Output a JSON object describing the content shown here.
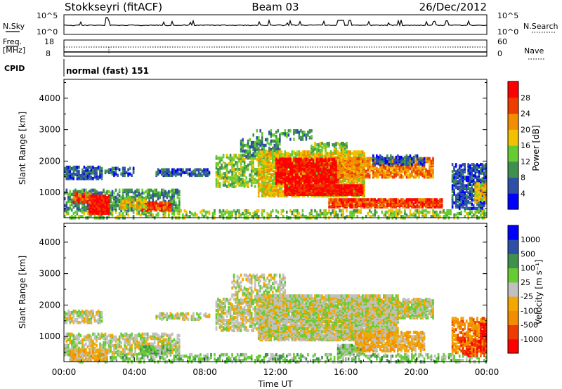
{
  "header": {
    "station": "Stokkseyri (fitACF)",
    "beam": "Beam 03",
    "date": "26/Dec/2012"
  },
  "status_panels": {
    "nsky_label": "N.Sky",
    "nsky_ticks": [
      "10^5",
      "10^0"
    ],
    "nsearch_label": "N.Search",
    "nsearch_ticks": [
      "10^5",
      "10^0"
    ],
    "freq_label_1": "Freq.",
    "freq_label_2": "[MHz]",
    "freq_ticks": [
      "18",
      "8"
    ],
    "nave_label": "Nave",
    "nave_ticks": [
      "60",
      "0"
    ],
    "cpid_label": "CPID",
    "cpid_text": "normal (fast) 151"
  },
  "chart_data": [
    {
      "type": "heatmap",
      "name": "Power",
      "ylabel": "Slant Range [km]",
      "ylim": [
        200,
        4600
      ],
      "yticks": [
        1000,
        2000,
        3000,
        4000
      ],
      "xlim": [
        0,
        24
      ],
      "colorbar": {
        "label": "Power [dB]",
        "ticks": [
          "28",
          "24",
          "20",
          "16",
          "12",
          "8",
          "4"
        ],
        "colors": [
          "#0000ff",
          "#2e4fa6",
          "#3f8f4f",
          "#66cc33",
          "#f2c100",
          "#f28c00",
          "#ee3c00",
          "#ff0000"
        ]
      },
      "regions": [
        {
          "t0": 0.0,
          "t1": 24.0,
          "r0": 200,
          "r1": 450,
          "level": 3,
          "density": 0.35
        },
        {
          "t0": 0.0,
          "t1": 2.2,
          "r0": 1450,
          "r1": 1850,
          "level": 1,
          "density": 0.7
        },
        {
          "t0": 2.3,
          "t1": 4.0,
          "r0": 1550,
          "r1": 1800,
          "level": 1,
          "density": 0.45
        },
        {
          "t0": 5.2,
          "t1": 6.7,
          "r0": 1550,
          "r1": 1750,
          "level": 1,
          "density": 0.8
        },
        {
          "t0": 6.8,
          "t1": 8.2,
          "r0": 1550,
          "r1": 1750,
          "level": 1,
          "density": 0.6
        },
        {
          "t0": 0.0,
          "t1": 6.5,
          "r0": 450,
          "r1": 1100,
          "level": 2,
          "density": 0.55
        },
        {
          "t0": 1.4,
          "t1": 2.6,
          "r0": 350,
          "r1": 900,
          "level": 7,
          "density": 0.9
        },
        {
          "t0": 0.5,
          "t1": 1.5,
          "r0": 700,
          "r1": 1000,
          "level": 6,
          "density": 0.6
        },
        {
          "t0": 4.3,
          "t1": 6.0,
          "r0": 450,
          "r1": 700,
          "level": 6,
          "density": 0.75
        },
        {
          "t0": 3.2,
          "t1": 4.6,
          "r0": 500,
          "r1": 800,
          "level": 4,
          "density": 0.6
        },
        {
          "t0": 8.6,
          "t1": 11.0,
          "r0": 1200,
          "r1": 2200,
          "level": 3,
          "density": 0.45
        },
        {
          "t0": 10.0,
          "t1": 12.2,
          "r0": 2100,
          "r1": 2700,
          "level": 2,
          "density": 0.45
        },
        {
          "t0": 10.5,
          "t1": 14.0,
          "r0": 2700,
          "r1": 3000,
          "level": 2,
          "density": 0.25
        },
        {
          "t0": 11.0,
          "t1": 17.0,
          "r0": 900,
          "r1": 2300,
          "level": 4,
          "density": 0.75
        },
        {
          "t0": 12.0,
          "t1": 15.5,
          "r0": 1300,
          "r1": 2100,
          "level": 7,
          "density": 0.7
        },
        {
          "t0": 12.5,
          "t1": 17.0,
          "r0": 950,
          "r1": 1250,
          "level": 7,
          "density": 0.9
        },
        {
          "t0": 15.5,
          "t1": 21.0,
          "r0": 1500,
          "r1": 2100,
          "level": 5,
          "density": 0.7
        },
        {
          "t0": 17.5,
          "t1": 20.5,
          "r0": 1900,
          "r1": 2200,
          "level": 1,
          "density": 0.5
        },
        {
          "t0": 15.0,
          "t1": 21.5,
          "r0": 550,
          "r1": 800,
          "level": 6,
          "density": 0.85
        },
        {
          "t0": 14.0,
          "t1": 16.0,
          "r0": 2300,
          "r1": 2600,
          "level": 3,
          "density": 0.4
        },
        {
          "t0": 22.0,
          "t1": 24.0,
          "r0": 500,
          "r1": 1900,
          "level": 1,
          "density": 0.55
        },
        {
          "t0": 23.3,
          "t1": 24.0,
          "r0": 700,
          "r1": 1300,
          "level": 4,
          "density": 0.6
        }
      ]
    },
    {
      "type": "heatmap",
      "name": "Velocity",
      "ylabel": "Slant Range [km]",
      "xlabel": "Time UT",
      "ylim": [
        200,
        4600
      ],
      "yticks": [
        1000,
        2000,
        3000,
        4000
      ],
      "xlim": [
        0,
        24
      ],
      "xticks": [
        "00:00",
        "04:00",
        "08:00",
        "12:00",
        "16:00",
        "20:00",
        "00:00"
      ],
      "colorbar": {
        "label": "Velocity [m s⁻¹]",
        "ticks": [
          "1000",
          "500",
          "100",
          "25",
          "-25",
          "-100",
          "-500",
          "-1000"
        ],
        "colors": [
          "#ff0000",
          "#ee3c00",
          "#f28c00",
          "#f2a800",
          "#c0c0c0",
          "#66cc33",
          "#3f8f4f",
          "#2e4fa6",
          "#0000ff"
        ]
      },
      "regions": [
        {
          "t0": 0.0,
          "t1": 24.0,
          "r0": 200,
          "r1": 450,
          "level": 5,
          "density": 0.3
        },
        {
          "t0": 0.0,
          "t1": 2.2,
          "r0": 1450,
          "r1": 1850,
          "level": 4,
          "density": 0.55
        },
        {
          "t0": 5.2,
          "t1": 8.2,
          "r0": 1550,
          "r1": 1750,
          "level": 4,
          "density": 0.55
        },
        {
          "t0": 0.0,
          "t1": 6.5,
          "r0": 450,
          "r1": 1100,
          "level": 4,
          "density": 0.5
        },
        {
          "t0": 0.3,
          "t1": 2.5,
          "r0": 250,
          "r1": 600,
          "level": 3,
          "density": 0.7
        },
        {
          "t0": 4.3,
          "t1": 6.0,
          "r0": 450,
          "r1": 700,
          "level": 5,
          "density": 0.85
        },
        {
          "t0": 8.6,
          "t1": 11.0,
          "r0": 1200,
          "r1": 2200,
          "level": 4,
          "density": 0.5
        },
        {
          "t0": 9.5,
          "t1": 12.5,
          "r0": 2100,
          "r1": 3000,
          "level": 4,
          "density": 0.35
        },
        {
          "t0": 11.0,
          "t1": 19.0,
          "r0": 900,
          "r1": 2300,
          "level": 4,
          "density": 0.85
        },
        {
          "t0": 17.0,
          "t1": 21.0,
          "r0": 1600,
          "r1": 2200,
          "level": 4,
          "density": 0.75
        },
        {
          "t0": 15.5,
          "t1": 17.0,
          "r0": 450,
          "r1": 750,
          "level": 5,
          "density": 0.8
        },
        {
          "t0": 16.5,
          "t1": 20.5,
          "r0": 550,
          "r1": 1150,
          "level": 3,
          "density": 0.65
        },
        {
          "t0": 22.0,
          "t1": 24.0,
          "r0": 500,
          "r1": 1600,
          "level": 2,
          "density": 0.55
        },
        {
          "t0": 22.5,
          "t1": 24.0,
          "r0": 400,
          "r1": 900,
          "level": 1,
          "density": 0.5
        },
        {
          "t0": 23.6,
          "t1": 24.0,
          "r0": 900,
          "r1": 1400,
          "level": 0,
          "density": 0.7
        }
      ]
    }
  ]
}
